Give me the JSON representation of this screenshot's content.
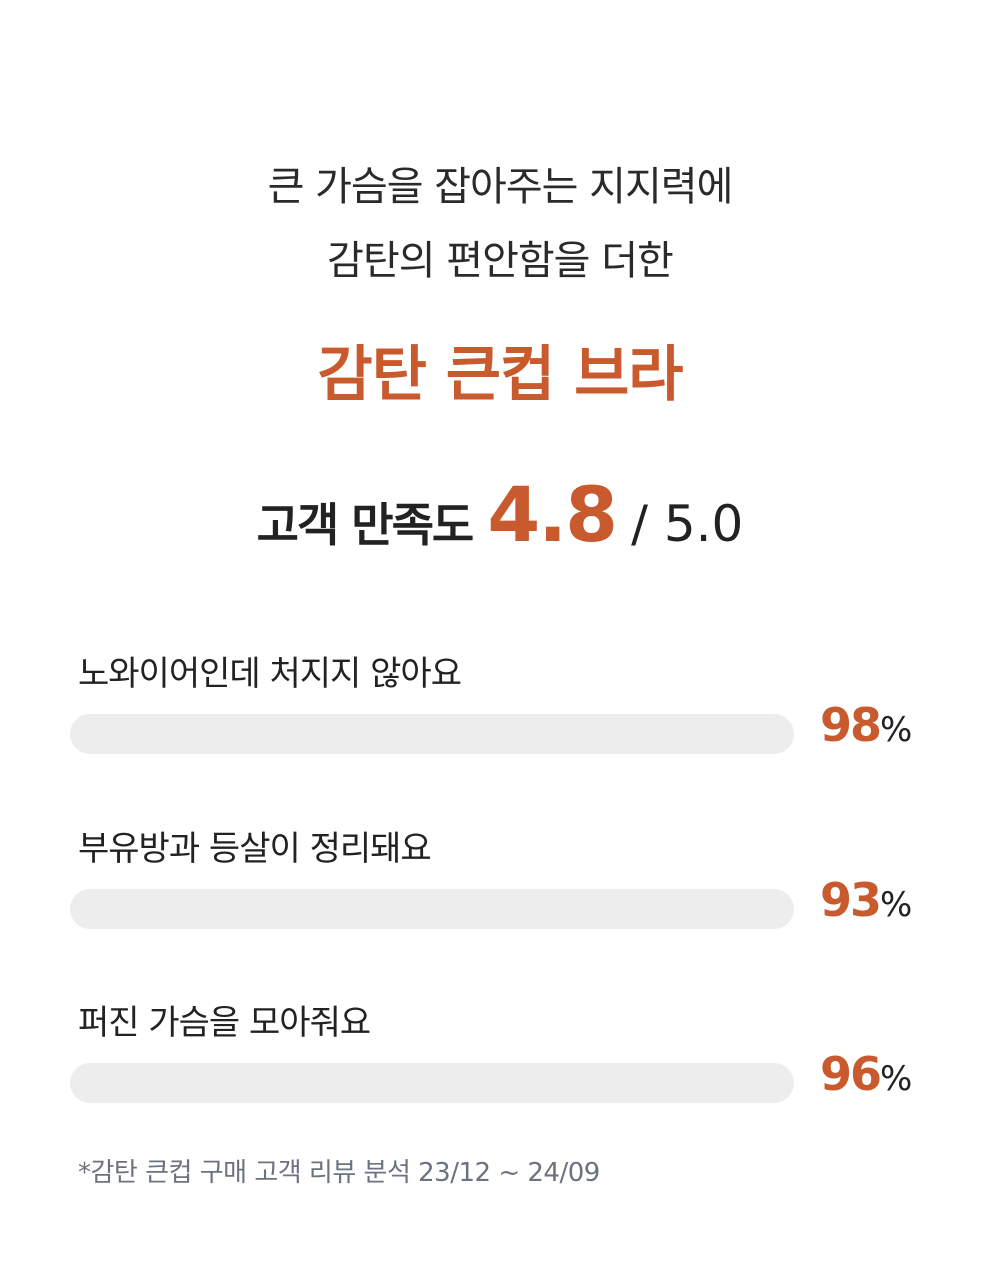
{
  "intro": {
    "line1": "큰 가슴을 잡아주는 지지력에",
    "line2": "감탄의 편안함을 더한"
  },
  "product_name": "감탄 큰컵 브라",
  "rating": {
    "label": "고객 만족도",
    "score": "4.8",
    "max": "/ 5.0"
  },
  "accent_color": "#c85a2e",
  "stats": [
    {
      "label": "노와이어인데 처지지 않아요",
      "percent": "98",
      "unit": "%"
    },
    {
      "label": "부유방과 등살이 정리돼요",
      "percent": "93",
      "unit": "%"
    },
    {
      "label": "퍼진 가슴을 모아줘요",
      "percent": "96",
      "unit": "%"
    }
  ],
  "footnote": "*감탄 큰컵 구매 고객 리뷰 분석 23/12 ~ 24/09"
}
